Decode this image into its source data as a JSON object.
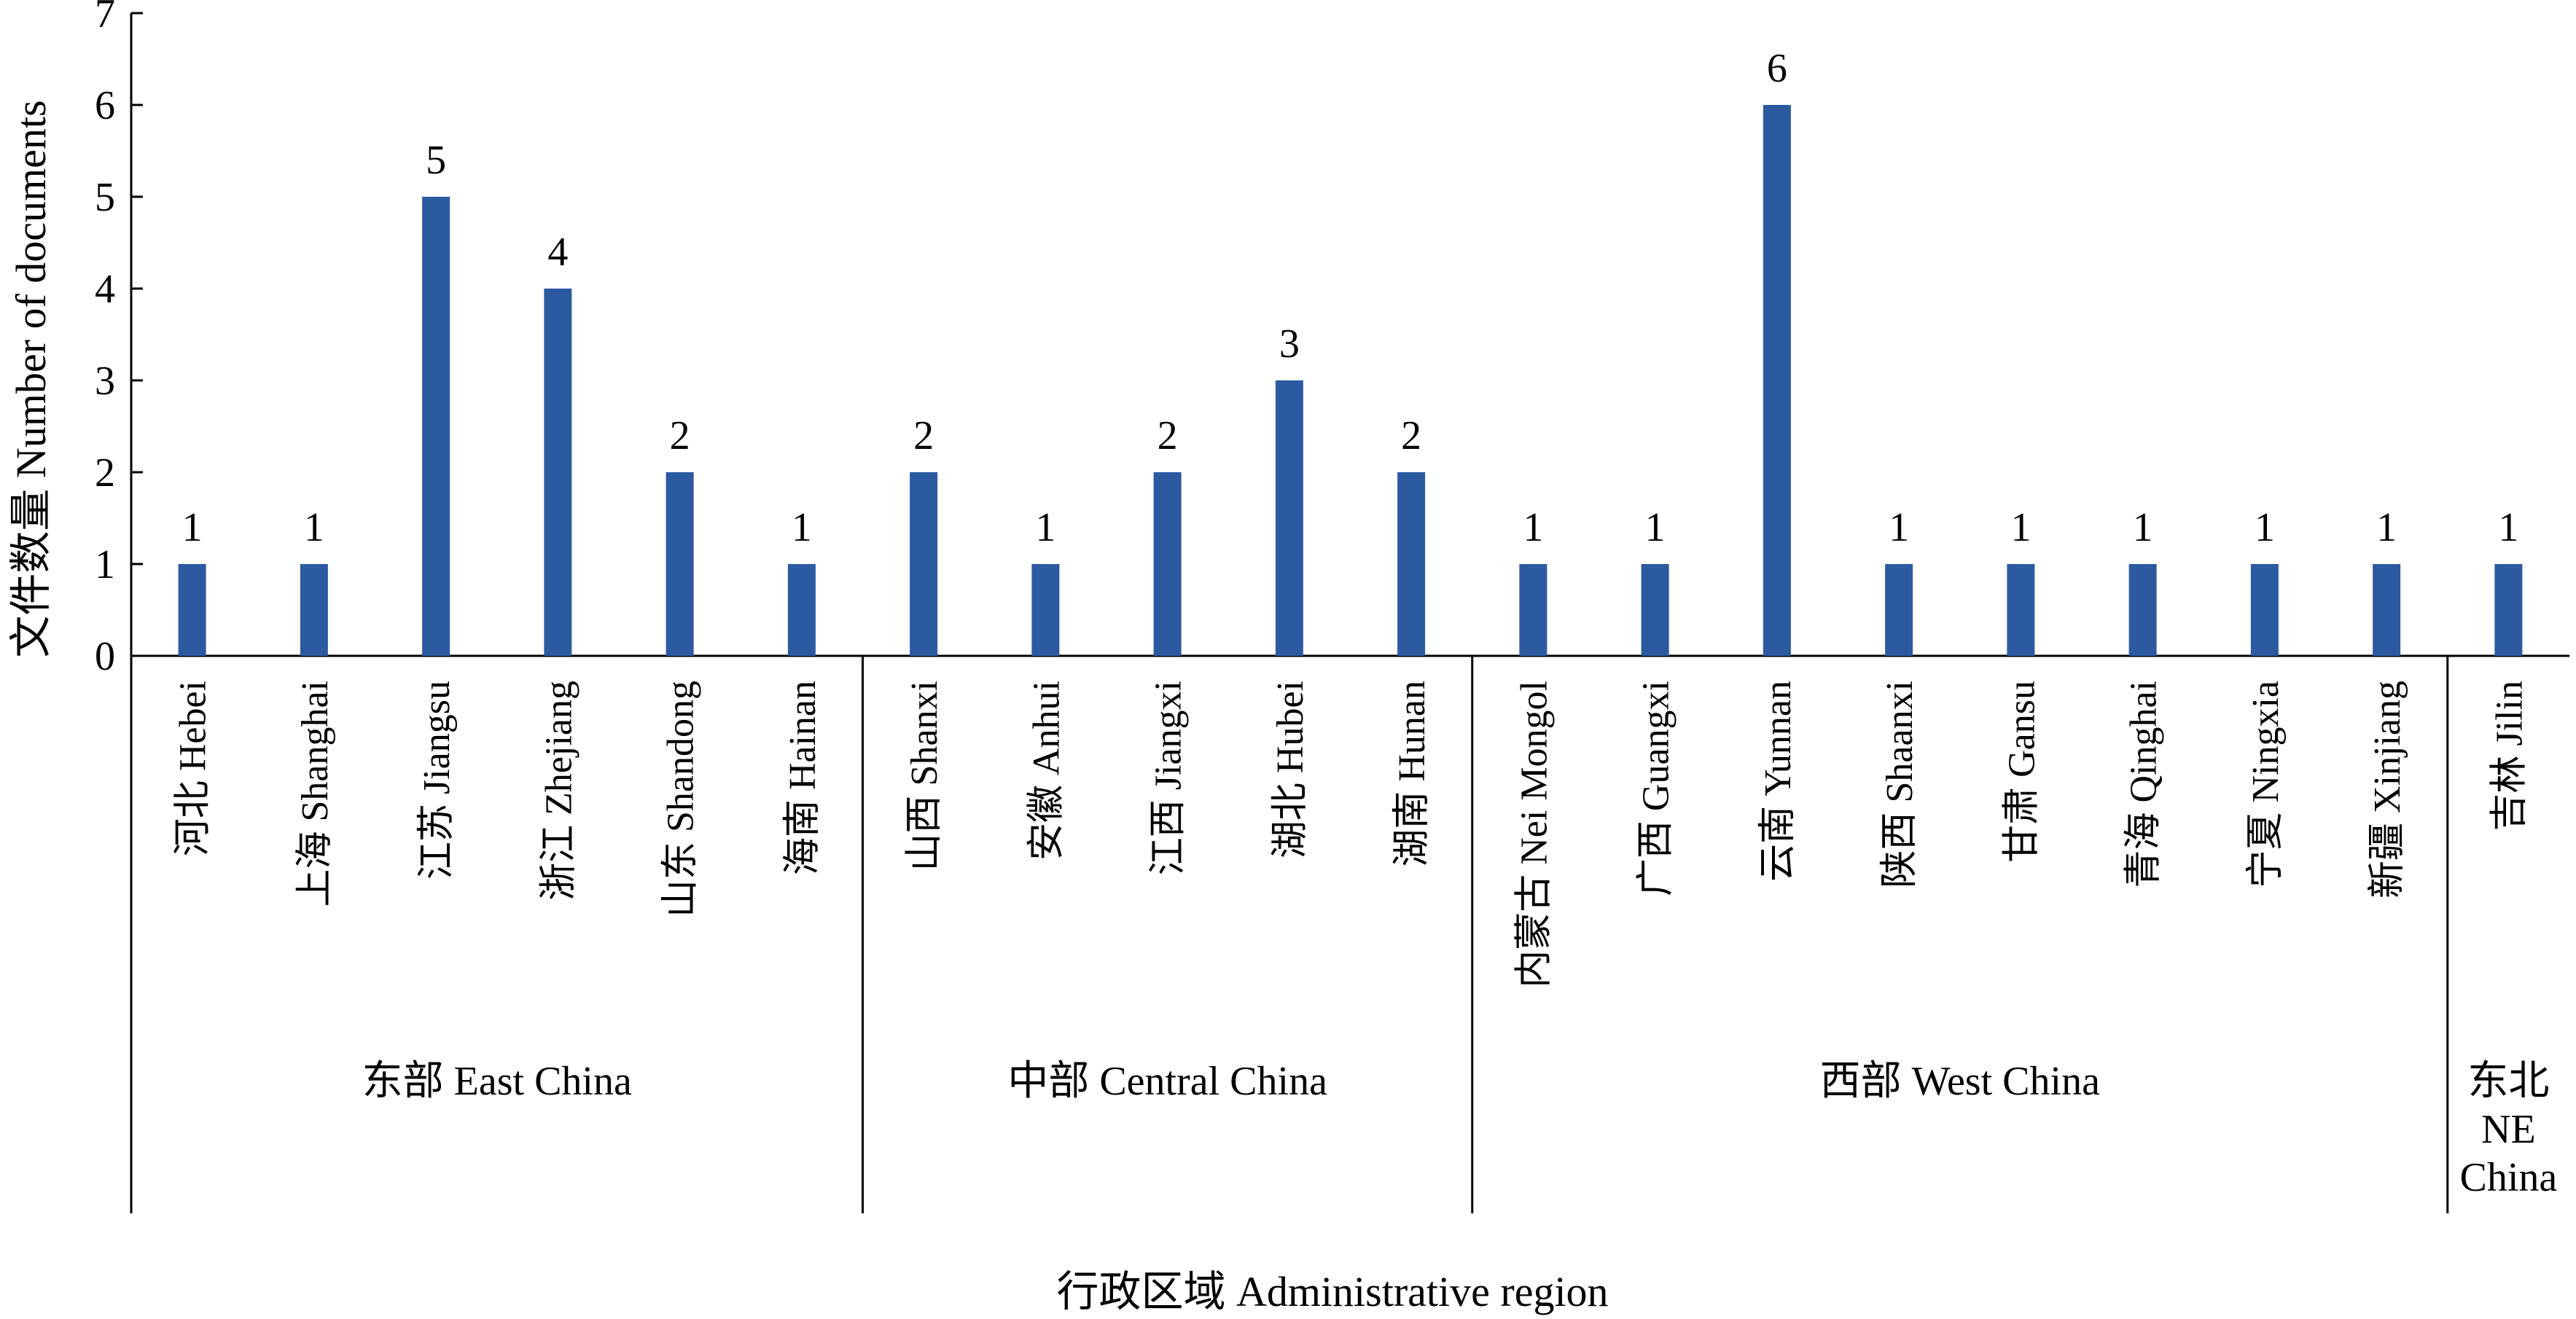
{
  "chart_data": {
    "type": "bar",
    "xlabel": "行政区域 Administrative region",
    "ylabel": "文件数量 Number of documents",
    "ylim": [
      0,
      7
    ],
    "yticks": [
      0,
      1,
      2,
      3,
      4,
      5,
      6,
      7
    ],
    "bar_color": "#2c5aa0",
    "categories": [
      "河北 Hebei",
      "上海 Shanghai",
      "江苏 Jiangsu",
      "浙江 Zhejiang",
      "山东 Shandong",
      "海南 Hainan",
      "山西 Shanxi",
      "安徽 Anhui",
      "江西 Jiangxi",
      "湖北 Hubei",
      "湖南 Hunan",
      "内蒙古 Nei Mongol",
      "广西 Guangxi",
      "云南 Yunnan",
      "陕西 Shaanxi",
      "甘肃 Gansu",
      "青海 Qinghai",
      "宁夏 Ningxia",
      "新疆 Xinjiang",
      "吉林 Jilin"
    ],
    "values": [
      1,
      1,
      5,
      4,
      2,
      1,
      2,
      1,
      2,
      3,
      2,
      1,
      1,
      6,
      1,
      1,
      1,
      1,
      1,
      1
    ],
    "groups": [
      {
        "label": "东部 East China",
        "count": 6
      },
      {
        "label": "中部 Central China",
        "count": 5
      },
      {
        "label": "西部 West China",
        "count": 8
      },
      {
        "label": "东北 NE China",
        "count": 1
      }
    ]
  }
}
